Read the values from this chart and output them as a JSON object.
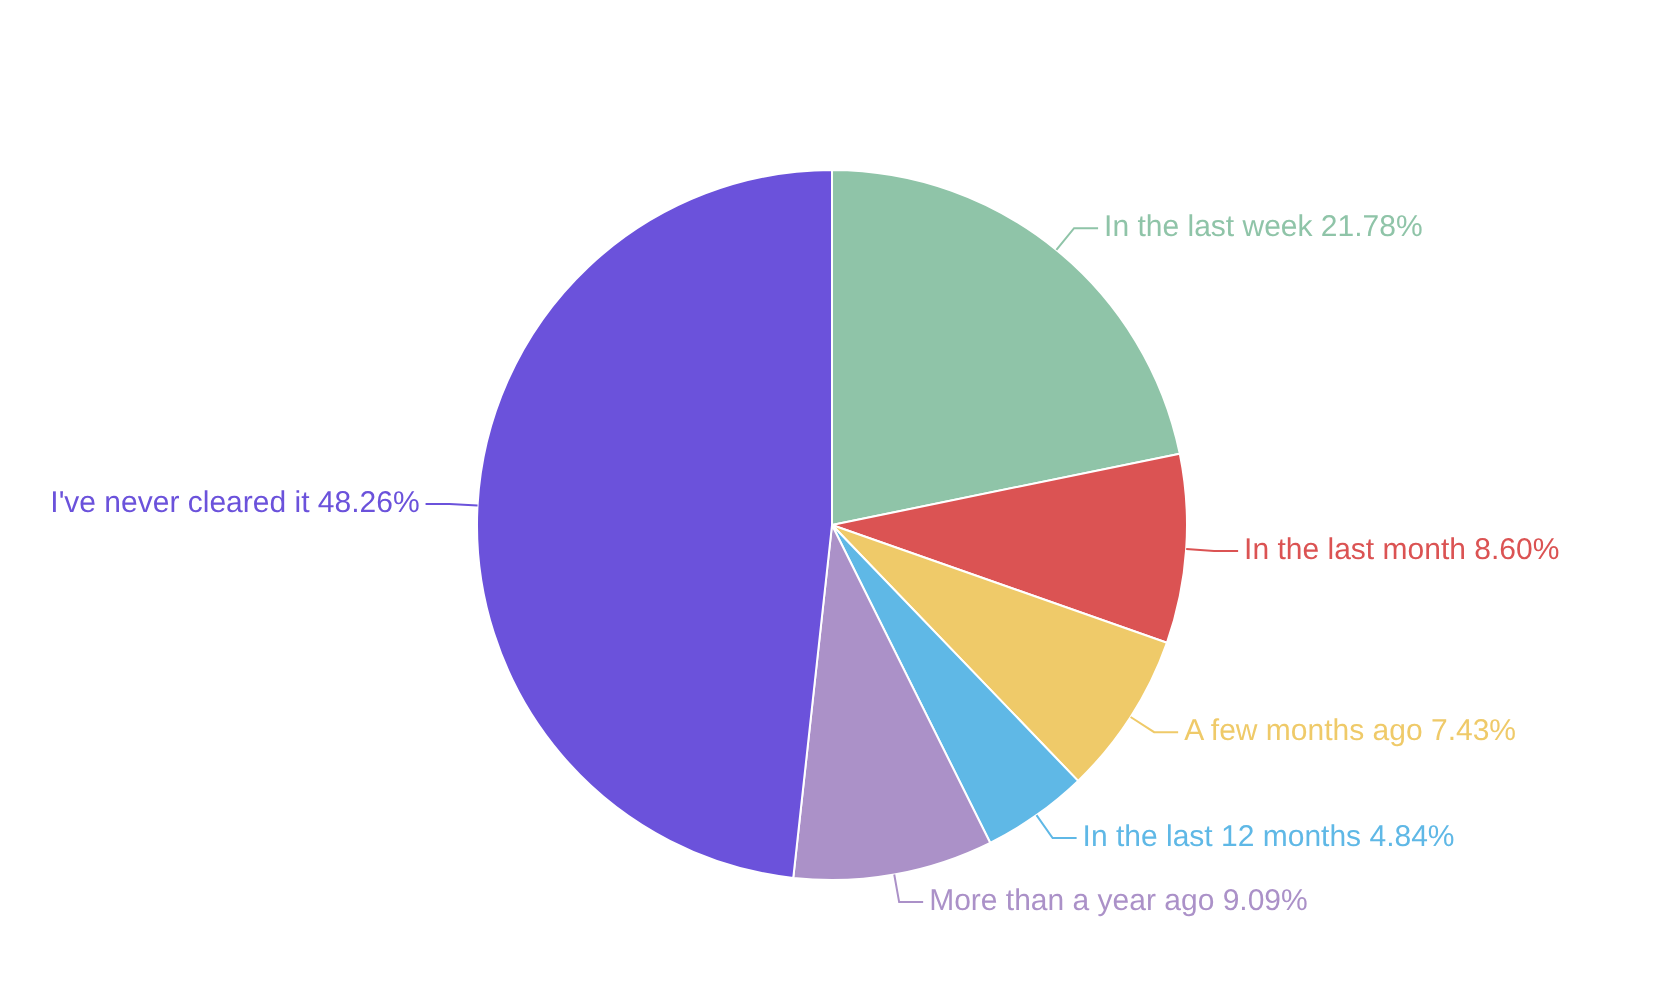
{
  "chart_data": {
    "type": "pie",
    "categories": [
      "In the last week",
      "In the last month",
      "A few months ago",
      "In the last 12 months",
      "More than a year ago",
      "I've never cleared it"
    ],
    "values": [
      21.78,
      8.6,
      7.43,
      4.84,
      9.09,
      48.26
    ],
    "value_labels": [
      "21.78%",
      "8.60%",
      "7.43%",
      "4.84%",
      "9.09%",
      "48.26%"
    ],
    "colors": [
      "#8fc4a8",
      "#db5353",
      "#efca69",
      "#5fb8e6",
      "#ab91c8",
      "#6b52db"
    ],
    "legend": false
  }
}
